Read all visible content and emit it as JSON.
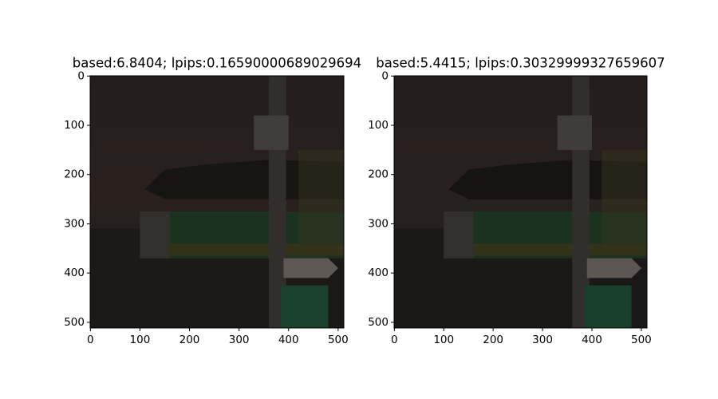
{
  "chart_data": [
    {
      "type": "image",
      "title": "based:6.8404; lpips:0.16590000689029694",
      "xlim": [
        -0.5,
        511.5
      ],
      "ylim": [
        511.5,
        -0.5
      ],
      "xticks": [
        0,
        100,
        200,
        300,
        400,
        500
      ],
      "yticks": [
        0,
        100,
        200,
        300,
        400,
        500
      ]
    },
    {
      "type": "image",
      "title": "based:5.4415; lpips:0.30329999327659607",
      "xlim": [
        -0.5,
        511.5
      ],
      "ylim": [
        511.5,
        -0.5
      ],
      "xticks": [
        0,
        100,
        200,
        300,
        400,
        500
      ],
      "yticks": [
        0,
        100,
        200,
        300,
        400,
        500
      ]
    }
  ]
}
